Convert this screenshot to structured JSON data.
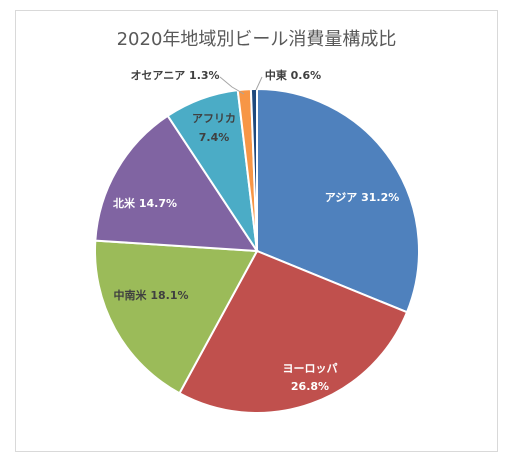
{
  "chart_data": {
    "type": "pie",
    "title": "2020年地域別ビール消費量構成比",
    "slices": [
      {
        "name": "アジア",
        "value": 31.2,
        "label": "アジア 31.2%",
        "color": "#4f81bd"
      },
      {
        "name": "ヨーロッパ",
        "value": 26.8,
        "label_lines": [
          "ヨーロッパ",
          "26.8%"
        ],
        "color": "#c0504d"
      },
      {
        "name": "中南米",
        "value": 18.1,
        "label": "中南米 18.1%",
        "color": "#9bbb59"
      },
      {
        "name": "北米",
        "value": 14.7,
        "label": "北米 14.7%",
        "color": "#8064a2"
      },
      {
        "name": "アフリカ",
        "value": 7.4,
        "label_lines": [
          "アフリカ",
          "7.4%"
        ],
        "color": "#4bacc6"
      },
      {
        "name": "オセアニア",
        "value": 1.3,
        "label": "オセアニア 1.3%",
        "color": "#f79646"
      },
      {
        "name": "中東",
        "value": 0.6,
        "label": "中東 0.6%",
        "color": "#1f497d"
      }
    ],
    "legend": "none"
  }
}
